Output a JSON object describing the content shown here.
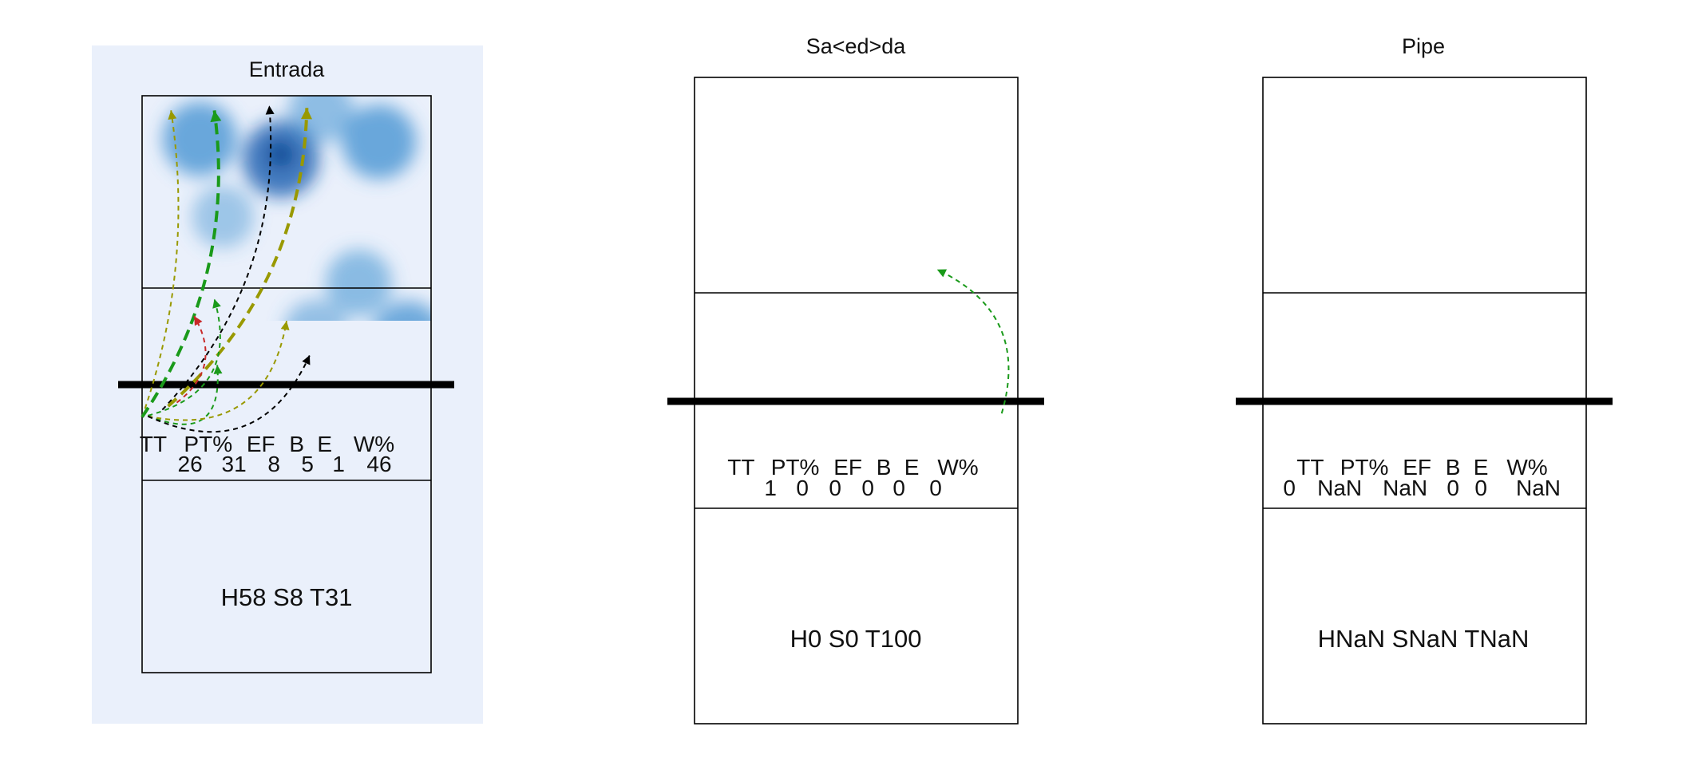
{
  "chart_data": {
    "type": "court_chart",
    "panels": [
      {
        "id": "entrada",
        "title": "Entrada",
        "highlighted": true,
        "highlight_color": "#eaf0fb",
        "stats_header": [
          "TT",
          "PT%",
          "EF",
          "B",
          "E",
          "W%"
        ],
        "stats_values": [
          "26",
          "31",
          "8",
          "5",
          "1",
          "46"
        ],
        "summary": {
          "H": "58",
          "S": "8",
          "T": "31",
          "text": "H58 S8 T31"
        },
        "heat_spots": [
          {
            "x": 0.2,
            "y": 0.15,
            "w": 0.9
          },
          {
            "x": 0.48,
            "y": 0.22,
            "w": 1.0
          },
          {
            "x": 0.62,
            "y": 0.05,
            "w": 0.5
          },
          {
            "x": 0.82,
            "y": 0.16,
            "w": 0.9
          },
          {
            "x": 0.75,
            "y": 0.65,
            "w": 0.55
          },
          {
            "x": 0.92,
            "y": 0.84,
            "w": 0.85
          },
          {
            "x": 0.6,
            "y": 0.82,
            "w": 0.45
          },
          {
            "x": 0.28,
            "y": 0.42,
            "w": 0.35
          }
        ],
        "attacks": [
          {
            "color": "#999900",
            "start": [
              0.0,
              0.45
            ],
            "end": [
              0.1,
              -1.12
            ],
            "dashed": true,
            "width": "thin"
          },
          {
            "color": "#1a9a1a",
            "start": [
              0.0,
              0.45
            ],
            "end": [
              0.25,
              -1.12
            ],
            "dashed": true,
            "width": "thick"
          },
          {
            "color": "#000000",
            "start": [
              0.07,
              0.35
            ],
            "end": [
              0.44,
              -1.14
            ],
            "dashed": true,
            "width": "thin"
          },
          {
            "color": "#999900",
            "start": [
              0.09,
              0.3
            ],
            "end": [
              0.57,
              -1.13
            ],
            "dashed": true,
            "width": "thick"
          },
          {
            "color": "#c82828",
            "start": [
              0.12,
              0.25
            ],
            "end": [
              0.18,
              -0.28
            ],
            "dashed": true,
            "width": "thin"
          },
          {
            "color": "#1a9a1a",
            "start": [
              0.02,
              0.43
            ],
            "end": [
              0.25,
              -0.35
            ],
            "dashed": true,
            "width": "thin"
          },
          {
            "color": "#1a9a1a",
            "start": [
              0.02,
              0.43
            ],
            "end": [
              0.26,
              -0.08
            ],
            "dashed": true,
            "width": "thin"
          },
          {
            "color": "#999900",
            "start": [
              0.02,
              0.44
            ],
            "end": [
              0.5,
              -0.26
            ],
            "dashed": true,
            "width": "thin"
          },
          {
            "color": "#000000",
            "start": [
              0.02,
              0.44
            ],
            "end": [
              0.58,
              -0.12
            ],
            "dashed": true,
            "width": "thin"
          }
        ]
      },
      {
        "id": "saida",
        "title": "Sa<ed>da",
        "highlighted": false,
        "stats_header": [
          "TT",
          "PT%",
          "EF",
          "B",
          "E",
          "W%"
        ],
        "stats_values": [
          "1",
          "0",
          "0",
          "0",
          "0",
          "0"
        ],
        "summary": {
          "H": "0",
          "S": "0",
          "T": "100",
          "text": "H0 S0 T100"
        },
        "heat_spots": [],
        "attacks": [
          {
            "color": "#1a9a1a",
            "start": [
              0.95,
              0.15
            ],
            "end": [
              0.75,
              -0.48
            ],
            "dashed": true,
            "width": "thin"
          }
        ]
      },
      {
        "id": "pipe",
        "title": "Pipe",
        "highlighted": false,
        "stats_header": [
          "TT",
          "PT%",
          "EF",
          "B",
          "E",
          "W%"
        ],
        "stats_values": [
          "0",
          "NaN",
          "NaN",
          "0",
          "0",
          "NaN"
        ],
        "summary": {
          "H": "NaN",
          "S": "NaN",
          "T": "NaN",
          "text": "HNaN SNaN TNaN"
        },
        "heat_spots": [],
        "attacks": []
      }
    ]
  }
}
